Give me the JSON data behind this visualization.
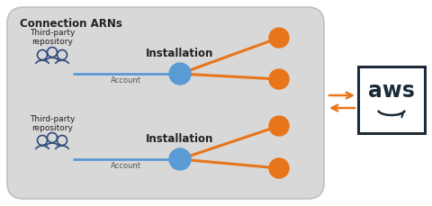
{
  "bg_color": "#d8d8d8",
  "orange": "#E8751A",
  "blue": "#5B9BD5",
  "dark_navy": "#1C2B39",
  "title": "Connection ARNs",
  "installation_label": "Installation",
  "account_label": "Account",
  "third_party_label": "Third-party\nrepository",
  "aws_text": "aws",
  "figsize": [
    4.8,
    2.29
  ],
  "dpi": 100,
  "white": "#ffffff",
  "person_color": "#3B5998",
  "text_dark": "#222222",
  "gray_edge": "#bbbbbb"
}
